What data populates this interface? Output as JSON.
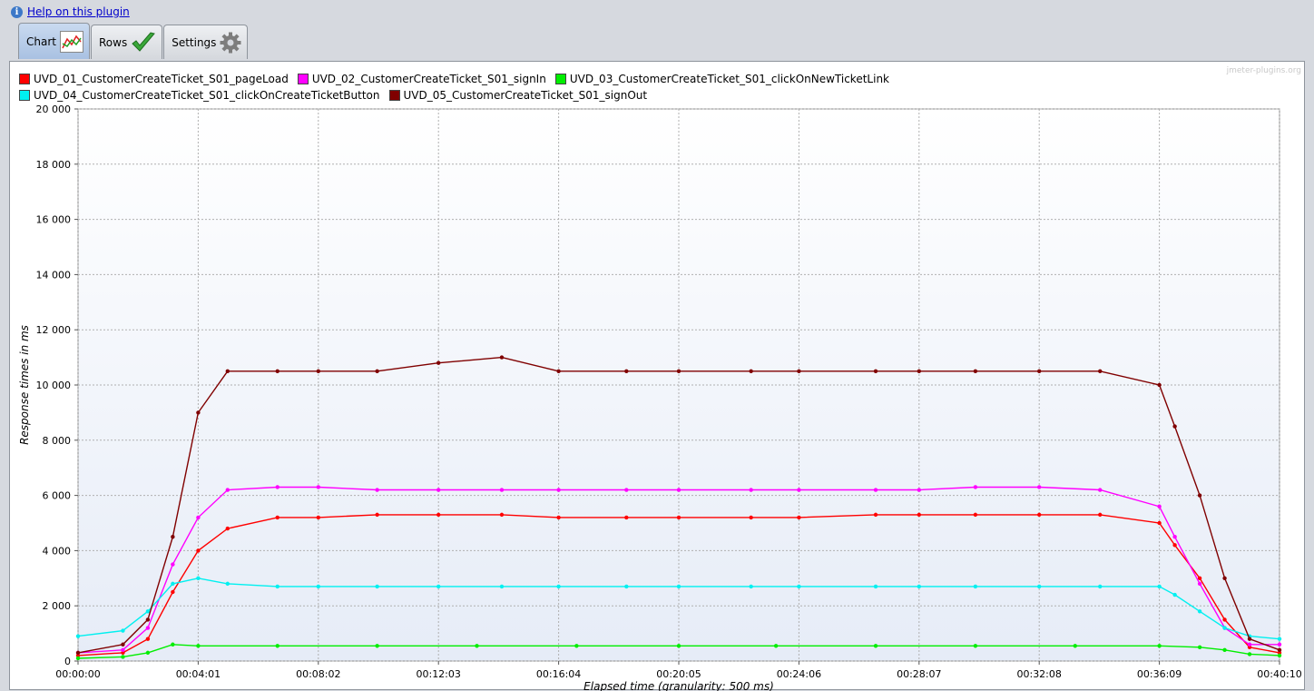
{
  "help": {
    "link_text": "Help on this plugin"
  },
  "tabs": [
    {
      "label": "Chart",
      "icon": "line-chart-icon",
      "active": true
    },
    {
      "label": "Rows",
      "icon": "check-mark-icon",
      "active": false
    },
    {
      "label": "Settings",
      "icon": "gear-icon",
      "active": false
    }
  ],
  "watermark": "jmeter-plugins.org",
  "chart_data": {
    "type": "line",
    "title": "",
    "xlabel": "Elapsed time (granularity: 500 ms)",
    "ylabel": "Response times in ms",
    "ylim": [
      0,
      20000
    ],
    "yticks": [
      0,
      2000,
      4000,
      6000,
      8000,
      10000,
      12000,
      14000,
      16000,
      18000,
      20000
    ],
    "ytick_labels": [
      "0",
      "2 000",
      "4 000",
      "6 000",
      "8 000",
      "10 000",
      "12 000",
      "14 000",
      "16 000",
      "18 000",
      "20 000"
    ],
    "xlim_seconds": [
      0,
      2410
    ],
    "xticks_seconds": [
      0,
      241,
      482,
      723,
      964,
      1205,
      1446,
      1687,
      1928,
      2169,
      2410
    ],
    "xtick_labels": [
      "00:00:00",
      "00:04:01",
      "00:08:02",
      "00:12:03",
      "00:16:04",
      "00:20:05",
      "00:24:06",
      "00:28:07",
      "00:32:08",
      "00:36:09",
      "00:40:10"
    ],
    "grid": true,
    "legend_position": "top",
    "series": [
      {
        "name": "UVD_01_CustomerCreateTicket_S01_pageLoad",
        "color": "#ff0000",
        "x": [
          0,
          90,
          140,
          190,
          241,
          300,
          400,
          482,
          600,
          723,
          850,
          964,
          1100,
          1205,
          1350,
          1446,
          1600,
          1687,
          1800,
          1928,
          2050,
          2169,
          2200,
          2250,
          2300,
          2350,
          2410
        ],
        "y": [
          200,
          300,
          800,
          2500,
          4000,
          4800,
          5200,
          5200,
          5300,
          5300,
          5300,
          5200,
          5200,
          5200,
          5200,
          5200,
          5300,
          5300,
          5300,
          5300,
          5300,
          5000,
          4200,
          3000,
          1500,
          500,
          300
        ]
      },
      {
        "name": "UVD_02_CustomerCreateTicket_S01_signIn",
        "color": "#ff00ff",
        "x": [
          0,
          90,
          140,
          190,
          241,
          300,
          400,
          482,
          600,
          723,
          850,
          964,
          1100,
          1205,
          1350,
          1446,
          1600,
          1687,
          1800,
          1928,
          2050,
          2169,
          2200,
          2250,
          2300,
          2350,
          2410
        ],
        "y": [
          300,
          400,
          1200,
          3500,
          5200,
          6200,
          6300,
          6300,
          6200,
          6200,
          6200,
          6200,
          6200,
          6200,
          6200,
          6200,
          6200,
          6200,
          6300,
          6300,
          6200,
          5600,
          4500,
          2800,
          1200,
          600,
          600
        ]
      },
      {
        "name": "UVD_03_CustomerCreateTicket_S01_clickOnNewTicketLink",
        "color": "#00ee00",
        "x": [
          0,
          90,
          140,
          190,
          241,
          400,
          600,
          800,
          1000,
          1205,
          1400,
          1600,
          1800,
          2000,
          2169,
          2250,
          2300,
          2350,
          2410
        ],
        "y": [
          100,
          150,
          300,
          600,
          550,
          550,
          550,
          550,
          550,
          550,
          550,
          550,
          550,
          550,
          550,
          500,
          400,
          250,
          200
        ]
      },
      {
        "name": "UVD_04_CustomerCreateTicket_S01_clickOnCreateTicketButton",
        "color": "#00f0f0",
        "x": [
          0,
          90,
          140,
          190,
          241,
          300,
          400,
          482,
          600,
          723,
          850,
          964,
          1100,
          1205,
          1350,
          1446,
          1600,
          1687,
          1800,
          1928,
          2050,
          2169,
          2200,
          2250,
          2300,
          2350,
          2410
        ],
        "y": [
          900,
          1100,
          1800,
          2800,
          3000,
          2800,
          2700,
          2700,
          2700,
          2700,
          2700,
          2700,
          2700,
          2700,
          2700,
          2700,
          2700,
          2700,
          2700,
          2700,
          2700,
          2700,
          2400,
          1800,
          1200,
          900,
          800
        ]
      },
      {
        "name": "UVD_05_CustomerCreateTicket_S01_signOut",
        "color": "#800000",
        "x": [
          0,
          90,
          140,
          190,
          241,
          300,
          400,
          482,
          600,
          723,
          850,
          964,
          1100,
          1205,
          1350,
          1446,
          1600,
          1687,
          1800,
          1928,
          2050,
          2169,
          2200,
          2250,
          2300,
          2350,
          2410
        ],
        "y": [
          300,
          600,
          1500,
          4500,
          9000,
          10500,
          10500,
          10500,
          10500,
          10800,
          11000,
          10500,
          10500,
          10500,
          10500,
          10500,
          10500,
          10500,
          10500,
          10500,
          10500,
          10000,
          8500,
          6000,
          3000,
          800,
          400
        ]
      }
    ]
  }
}
